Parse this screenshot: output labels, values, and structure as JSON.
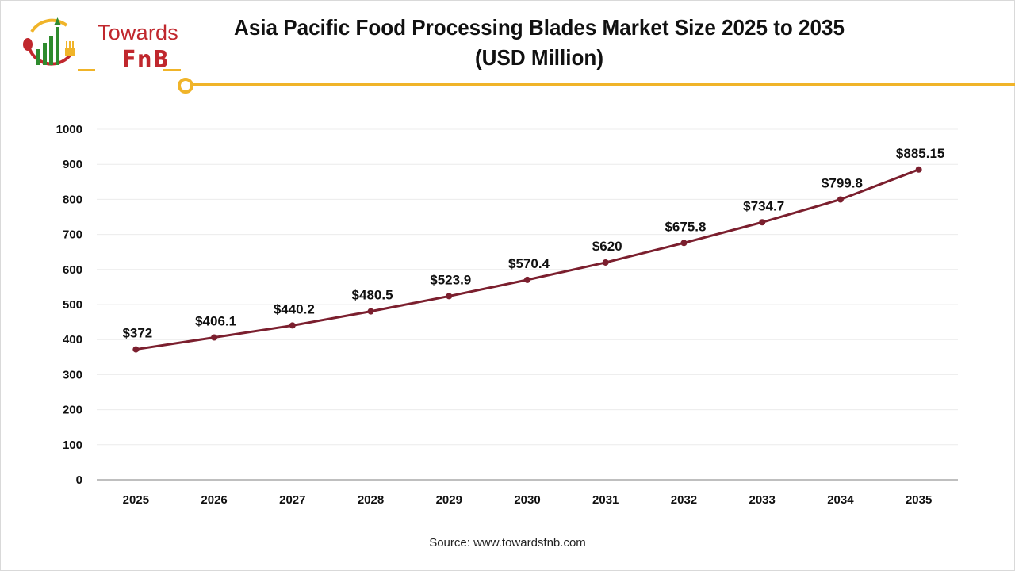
{
  "header": {
    "logo_text": "Towards",
    "logo_subtext": "FnB",
    "title_line1": "Asia Pacific Food Processing Blades Market Size 2025 to 2035",
    "title_line2": "(USD Million)"
  },
  "colors": {
    "line": "#7b1f2e",
    "accent": "#f0b429",
    "brand_red": "#c0272d",
    "brand_green": "#2e8b2e",
    "gridline": "#ececec",
    "axis": "#bfbfbf"
  },
  "footer": {
    "source": "Source: www.towardsfnb.com"
  },
  "chart_data": {
    "type": "line",
    "title": "Asia Pacific Food Processing Blades Market Size 2025 to 2035 (USD Million)",
    "xlabel": "",
    "ylabel": "",
    "categories": [
      "2025",
      "2026",
      "2027",
      "2028",
      "2029",
      "2030",
      "2031",
      "2032",
      "2033",
      "2034",
      "2035"
    ],
    "series": [
      {
        "name": "Market Size (USD Million)",
        "values": [
          372,
          406.1,
          440.2,
          480.5,
          523.9,
          570.4,
          620,
          675.8,
          734.7,
          799.8,
          885.15
        ],
        "labels": [
          "$372",
          "$406.1",
          "$440.2",
          "$480.5",
          "$523.9",
          "$570.4",
          "$620",
          "$675.8",
          "$734.7",
          "$799.8",
          "$885.15"
        ]
      }
    ],
    "ylim": [
      0,
      1000
    ],
    "yticks": [
      0,
      100,
      200,
      300,
      400,
      500,
      600,
      700,
      800,
      900,
      1000
    ],
    "grid": true,
    "legend": "none"
  }
}
